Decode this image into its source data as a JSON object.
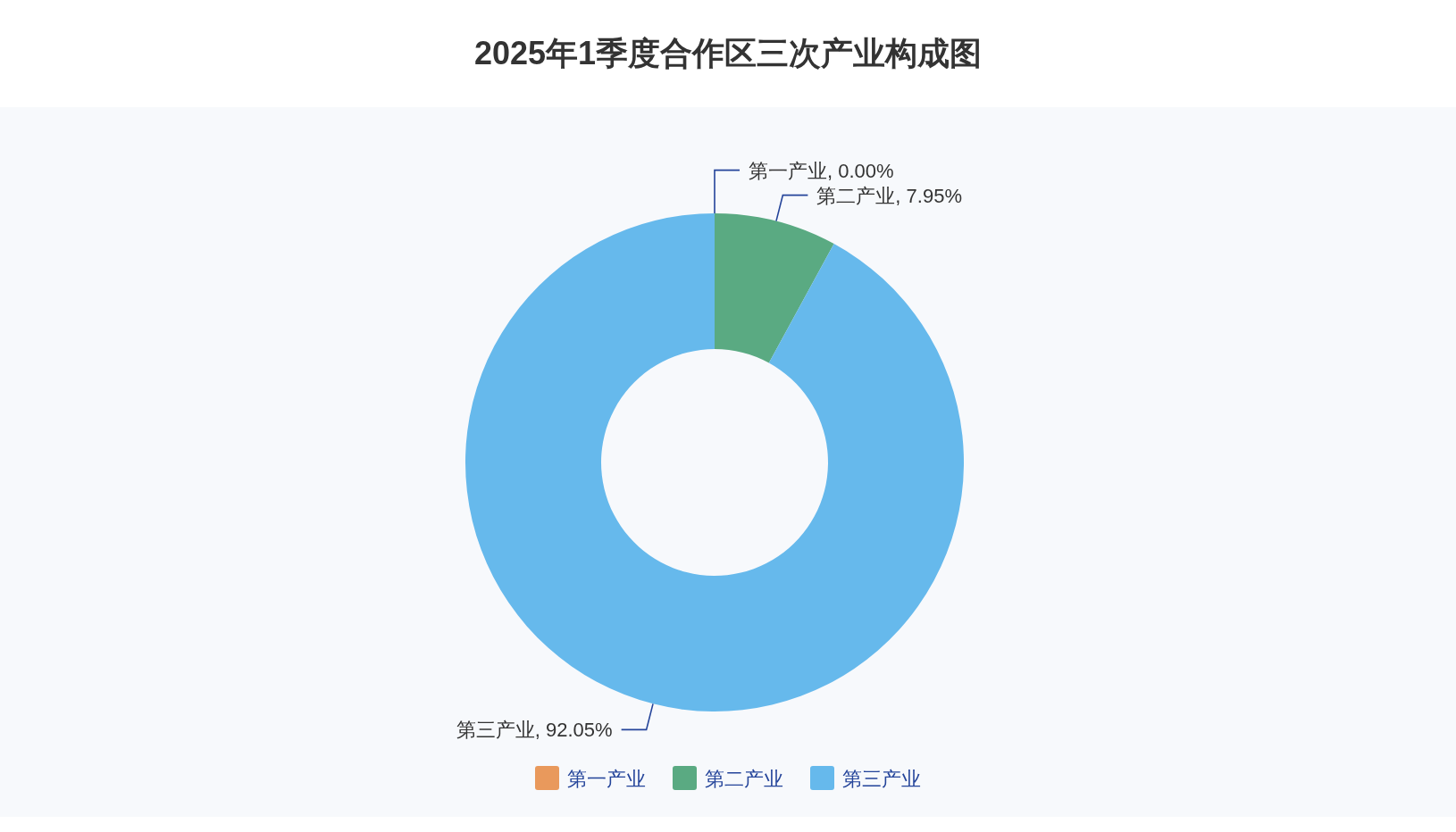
{
  "chart_data": {
    "type": "donut",
    "title": "2025年1季度合作区三次产业构成图",
    "categories": [
      "第一产业",
      "第二产业",
      "第三产业"
    ],
    "values": [
      0.0,
      7.95,
      92.05
    ],
    "value_labels": [
      "第一产业, 0.00%",
      "第二产业, 7.95%",
      "第三产业, 92.05%"
    ],
    "colors": [
      "#e9995c",
      "#5aaa82",
      "#66b9ec"
    ],
    "legend": "bottom"
  }
}
